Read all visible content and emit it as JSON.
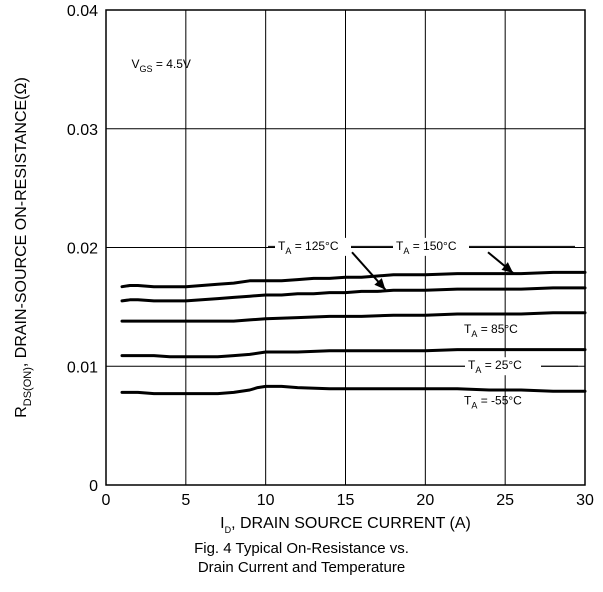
{
  "chart_data": {
    "type": "line",
    "x_axis": {
      "label_prefix": "I",
      "label_sub": "D",
      "label_rest": ", DRAIN SOURCE CURRENT (A)",
      "range": [
        0,
        30
      ],
      "ticks": [
        "0",
        "5",
        "10",
        "15",
        "20",
        "25",
        "30"
      ]
    },
    "y_axis": {
      "label_prefix": "R",
      "label_sub": "DS(ON)",
      "label_rest": ", DRAIN-SOURCE ON-RESISTANCE(Ω)",
      "range": [
        0,
        0.04
      ],
      "ticks": [
        "0",
        "0.01",
        "0.02",
        "0.03",
        "0.04"
      ]
    },
    "grid": true,
    "condition": {
      "prefix": "V",
      "sub": "GS",
      "rest": " = 4.5V"
    },
    "series": [
      {
        "name": "T_A = 150°C",
        "label_prefix": "T",
        "label_sub": "A",
        "label_rest": " = 150°C",
        "x": [
          1,
          1.5,
          2,
          3,
          4,
          5,
          6,
          7,
          8,
          9,
          10,
          11,
          12,
          13,
          14,
          15,
          16,
          17,
          18,
          19,
          20,
          22,
          24,
          26,
          28,
          30
        ],
        "y": [
          0.0167,
          0.0168,
          0.0168,
          0.0167,
          0.0167,
          0.0167,
          0.0168,
          0.0169,
          0.017,
          0.0172,
          0.0172,
          0.0172,
          0.0173,
          0.0174,
          0.0174,
          0.0175,
          0.0175,
          0.0176,
          0.0177,
          0.0177,
          0.0177,
          0.0178,
          0.0178,
          0.0178,
          0.0179,
          0.0179
        ]
      },
      {
        "name": "T_A = 125°C",
        "label_prefix": "T",
        "label_sub": "A",
        "label_rest": " = 125°C",
        "x": [
          1,
          1.5,
          2,
          3,
          4,
          5,
          6,
          7,
          8,
          9,
          10,
          11,
          12,
          13,
          14,
          15,
          16,
          17,
          18,
          19,
          20,
          22,
          24,
          26,
          28,
          30
        ],
        "y": [
          0.0155,
          0.0156,
          0.0156,
          0.0155,
          0.0155,
          0.0155,
          0.0156,
          0.0157,
          0.0158,
          0.0159,
          0.016,
          0.016,
          0.0161,
          0.0161,
          0.0162,
          0.0162,
          0.0163,
          0.0163,
          0.0164,
          0.0164,
          0.0164,
          0.0165,
          0.0165,
          0.0165,
          0.0166,
          0.0166
        ]
      },
      {
        "name": "T_A = 85°C",
        "label_prefix": "T",
        "label_sub": "A",
        "label_rest": " = 85°C",
        "x": [
          1,
          2,
          4,
          6,
          8,
          9,
          10,
          12,
          14,
          16,
          18,
          20,
          22,
          24,
          26,
          28,
          30
        ],
        "y": [
          0.0138,
          0.0138,
          0.0138,
          0.0138,
          0.0138,
          0.0139,
          0.014,
          0.0141,
          0.0142,
          0.0142,
          0.0143,
          0.0143,
          0.0144,
          0.0144,
          0.0144,
          0.0145,
          0.0145
        ]
      },
      {
        "name": "T_A = 25°C",
        "label_prefix": "T",
        "label_sub": "A",
        "label_rest": " = 25°C",
        "x": [
          1,
          2,
          3,
          4,
          5,
          6,
          7,
          8,
          9,
          10,
          12,
          14,
          16,
          18,
          20,
          22,
          24,
          26,
          28,
          30
        ],
        "y": [
          0.0109,
          0.0109,
          0.0109,
          0.0108,
          0.0108,
          0.0108,
          0.0108,
          0.0109,
          0.011,
          0.0112,
          0.0112,
          0.0113,
          0.0113,
          0.0113,
          0.0113,
          0.0114,
          0.0114,
          0.0114,
          0.0114,
          0.0114
        ]
      },
      {
        "name": "T_A = -55°C",
        "label_prefix": "T",
        "label_sub": "A",
        "label_rest": " = -55°C",
        "x": [
          1,
          2,
          3,
          4,
          5,
          6,
          7,
          8,
          9,
          9.5,
          10,
          11,
          12,
          14,
          16,
          18,
          20,
          22,
          24,
          26,
          28,
          30
        ],
        "y": [
          0.0078,
          0.0078,
          0.0077,
          0.0077,
          0.0077,
          0.0077,
          0.0077,
          0.0078,
          0.008,
          0.0082,
          0.0083,
          0.0083,
          0.0082,
          0.0081,
          0.0081,
          0.0081,
          0.0081,
          0.0081,
          0.008,
          0.008,
          0.0079,
          0.0079
        ]
      }
    ]
  },
  "caption": {
    "line1": "Fig. 4  Typical On-Resistance vs.",
    "line2": "Drain Current and Temperature"
  }
}
